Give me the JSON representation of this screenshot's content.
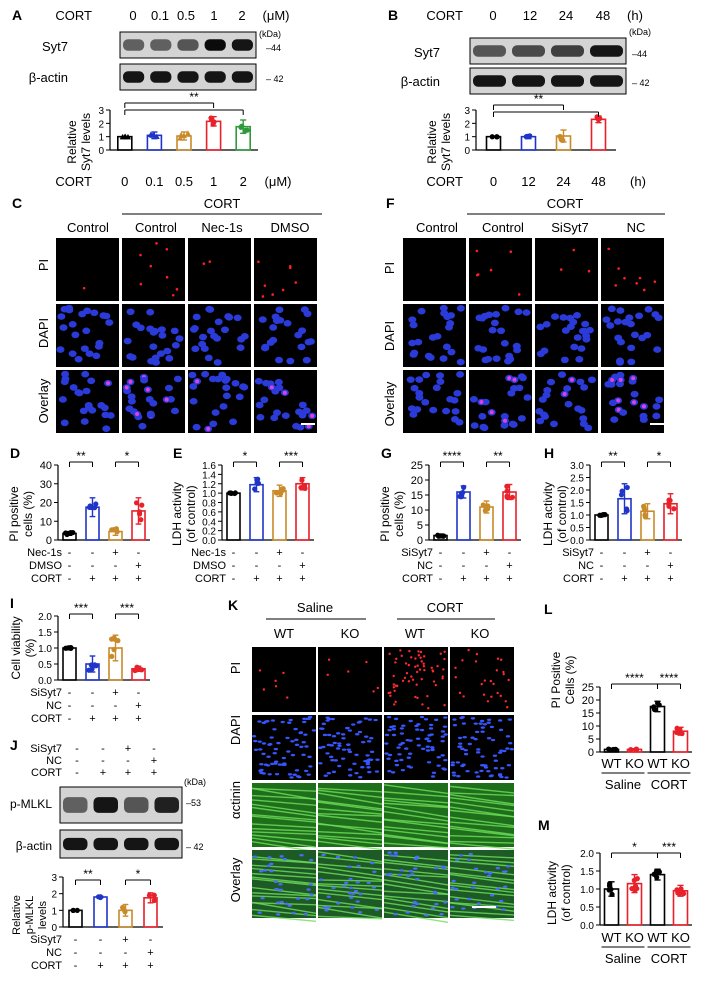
{
  "panels": {
    "A": {
      "letter": "A",
      "label": "CORT",
      "doses": [
        "0",
        "0.1",
        "0.5",
        "1",
        "2"
      ],
      "unit": "(μM)",
      "kda": "(kDa)",
      "blots": [
        {
          "name": "Syt7",
          "mw": "44"
        },
        {
          "name": "β-actin",
          "mw": "42"
        }
      ],
      "ylabel": [
        "Relative",
        "Syt7 levels"
      ],
      "sig": "**"
    },
    "B": {
      "letter": "B",
      "label": "CORT",
      "times": [
        "0",
        "12",
        "24",
        "48"
      ],
      "unit": "(h)",
      "kda": "(kDa)",
      "blots": [
        {
          "name": "Syt7",
          "mw": "44"
        },
        {
          "name": "β-actin",
          "mw": "42"
        }
      ],
      "ylabel": [
        "Relative",
        "Syt7 levels"
      ],
      "sig": "**"
    },
    "C": {
      "letter": "C",
      "top": "CORT",
      "cols": [
        "Control",
        "Control",
        "Nec-1s",
        "DMSO"
      ],
      "rows": [
        "PI",
        "DAPI",
        "Overlay"
      ]
    },
    "F": {
      "letter": "F",
      "top": "CORT",
      "cols": [
        "Control",
        "Control",
        "SiSyt7",
        "NC"
      ],
      "rows": [
        "PI",
        "DAPI",
        "Overlay"
      ]
    },
    "D": {
      "letter": "D",
      "ylabel": [
        "PI positive",
        "cells (%)"
      ],
      "sig": [
        "**",
        "*"
      ],
      "rows": [
        {
          "name": "Nec-1s",
          "signs": [
            "-",
            "-",
            "+",
            "-"
          ]
        },
        {
          "name": "DMSO",
          "signs": [
            "-",
            "-",
            "-",
            "+"
          ]
        },
        {
          "name": "CORT",
          "signs": [
            "-",
            "+",
            "+",
            "+"
          ]
        }
      ]
    },
    "E": {
      "letter": "E",
      "ylabel": [
        "LDH activity",
        "(of control)"
      ],
      "sig": [
        "*",
        "***"
      ],
      "rows": [
        {
          "name": "Nec-1s",
          "signs": [
            "-",
            "-",
            "+",
            "-"
          ]
        },
        {
          "name": "DMSO",
          "signs": [
            "-",
            "-",
            "-",
            "+"
          ]
        },
        {
          "name": "CORT",
          "signs": [
            "-",
            "+",
            "+",
            "+"
          ]
        }
      ]
    },
    "G": {
      "letter": "G",
      "ylabel": [
        "PI positive",
        "cells (%)"
      ],
      "sig": [
        "****",
        "**"
      ],
      "rows": [
        {
          "name": "SiSyt7",
          "signs": [
            "-",
            "-",
            "+",
            "-"
          ]
        },
        {
          "name": "NC",
          "signs": [
            "-",
            "-",
            "-",
            "+"
          ]
        },
        {
          "name": "CORT",
          "signs": [
            "-",
            "+",
            "+",
            "+"
          ]
        }
      ]
    },
    "H": {
      "letter": "H",
      "ylabel": [
        "LDH activity",
        "(of control)"
      ],
      "sig": [
        "**",
        "*"
      ],
      "rows": [
        {
          "name": "SiSyt7",
          "signs": [
            "-",
            "-",
            "+",
            "-"
          ]
        },
        {
          "name": "NC",
          "signs": [
            "-",
            "-",
            "-",
            "+"
          ]
        },
        {
          "name": "CORT",
          "signs": [
            "-",
            "+",
            "+",
            "+"
          ]
        }
      ]
    },
    "I": {
      "letter": "I",
      "ylabel": [
        "Cell viability",
        "(%)"
      ],
      "sig": [
        "***",
        "***"
      ],
      "rows": [
        {
          "name": "SiSyt7",
          "signs": [
            "-",
            "-",
            "+",
            "-"
          ]
        },
        {
          "name": "NC",
          "signs": [
            "-",
            "-",
            "-",
            "+"
          ]
        },
        {
          "name": "CORT",
          "signs": [
            "-",
            "+",
            "+",
            "+"
          ]
        }
      ]
    },
    "J": {
      "letter": "J",
      "kda": "(kDa)",
      "blots": [
        {
          "name": "p-MLKL",
          "mw": "53"
        },
        {
          "name": "β-actin",
          "mw": "42"
        }
      ],
      "rows": [
        {
          "name": "SiSyt7",
          "signs": [
            "-",
            "-",
            "+",
            "-"
          ]
        },
        {
          "name": "NC",
          "signs": [
            "-",
            "-",
            "-",
            "+"
          ]
        },
        {
          "name": "CORT",
          "signs": [
            "-",
            "+",
            "+",
            "+"
          ]
        }
      ],
      "ylabel": [
        "Relative",
        "p-MLKL",
        "levels"
      ],
      "sig": [
        "**",
        "*"
      ]
    },
    "K": {
      "letter": "K",
      "groups": [
        "Saline",
        "CORT"
      ],
      "cols": [
        "WT",
        "KO",
        "WT",
        "KO"
      ],
      "rows": [
        "PI",
        "DAPI",
        "αctinin",
        "Overlay"
      ]
    },
    "L": {
      "letter": "L",
      "ylabel": [
        "PI Positive",
        "Cells (%)"
      ],
      "sig": [
        "****",
        "****"
      ],
      "xcats": [
        "WT",
        "KO",
        "WT",
        "KO"
      ],
      "groups": [
        "Saline",
        "CORT"
      ]
    },
    "M": {
      "letter": "M",
      "ylabel": [
        "LDH activity",
        "(of control)"
      ],
      "sig": [
        "*",
        "***"
      ],
      "xcats": [
        "WT",
        "KO",
        "WT",
        "KO"
      ],
      "groups": [
        "Saline",
        "CORT"
      ]
    }
  },
  "chart_data": [
    {
      "id": "A",
      "type": "bar",
      "categories": [
        "0",
        "0.1",
        "0.5",
        "1",
        "2"
      ],
      "values": [
        1.0,
        1.1,
        1.05,
        2.15,
        1.75
      ],
      "errors": [
        0.02,
        0.25,
        0.3,
        0.35,
        0.5
      ],
      "ylim": [
        0,
        3
      ],
      "yticks": [
        0,
        1,
        2,
        3
      ],
      "colors": [
        "#000000",
        "#1f35c8",
        "#c98a2a",
        "#e8212a",
        "#2e9a3a"
      ]
    },
    {
      "id": "B",
      "type": "bar",
      "categories": [
        "0",
        "12",
        "24",
        "48"
      ],
      "values": [
        1.0,
        1.0,
        1.05,
        2.3
      ],
      "errors": [
        0.02,
        0.15,
        0.45,
        0.25
      ],
      "ylim": [
        0,
        3
      ],
      "yticks": [
        0,
        1,
        2,
        3
      ],
      "colors": [
        "#000000",
        "#1f35c8",
        "#c98a2a",
        "#e8212a"
      ]
    },
    {
      "id": "D",
      "type": "bar",
      "values": [
        3.5,
        17.5,
        4.5,
        15.5
      ],
      "errors": [
        1,
        5,
        2,
        7
      ],
      "ylim": [
        0,
        40
      ],
      "yticks": [
        0,
        10,
        20,
        30,
        40
      ],
      "colors": [
        "#000000",
        "#1f35c8",
        "#c98a2a",
        "#e8212a"
      ]
    },
    {
      "id": "E",
      "type": "bar",
      "values": [
        1.0,
        1.18,
        1.05,
        1.2
      ],
      "errors": [
        0.01,
        0.15,
        0.12,
        0.13
      ],
      "ylim": [
        0.0,
        1.6
      ],
      "yticks": [
        0.0,
        0.2,
        0.4,
        0.6,
        0.8,
        1.0,
        1.2,
        1.4,
        1.6
      ],
      "colors": [
        "#000000",
        "#1f35c8",
        "#c98a2a",
        "#e8212a"
      ]
    },
    {
      "id": "G",
      "type": "bar",
      "values": [
        1.5,
        16,
        11,
        16
      ],
      "errors": [
        0.5,
        2,
        2,
        2.5
      ],
      "ylim": [
        0,
        25
      ],
      "yticks": [
        0,
        5,
        10,
        15,
        20,
        25
      ],
      "colors": [
        "#000000",
        "#1f35c8",
        "#c98a2a",
        "#e8212a"
      ]
    },
    {
      "id": "H",
      "type": "bar",
      "values": [
        1.0,
        1.65,
        1.15,
        1.45
      ],
      "errors": [
        0.02,
        0.6,
        0.3,
        0.4
      ],
      "ylim": [
        0.0,
        3.0
      ],
      "yticks": [
        0.0,
        0.5,
        1.0,
        1.5,
        2.0,
        2.5,
        3.0
      ],
      "colors": [
        "#000000",
        "#1f35c8",
        "#c98a2a",
        "#e8212a"
      ]
    },
    {
      "id": "I",
      "type": "bar",
      "values": [
        1.0,
        0.5,
        1.0,
        0.35
      ],
      "errors": [
        0.02,
        0.25,
        0.4,
        0.08
      ],
      "ylim": [
        0.0,
        2.0
      ],
      "yticks": [
        0.0,
        0.5,
        1.0,
        1.5,
        2.0
      ],
      "colors": [
        "#000000",
        "#1f35c8",
        "#c98a2a",
        "#e8212a"
      ]
    },
    {
      "id": "J",
      "type": "bar",
      "values": [
        1.0,
        1.8,
        1.0,
        1.75
      ],
      "errors": [
        0.02,
        0.05,
        0.35,
        0.3
      ],
      "ylim": [
        0,
        3
      ],
      "yticks": [
        0,
        1,
        2,
        3
      ],
      "colors": [
        "#000000",
        "#1f35c8",
        "#c98a2a",
        "#e8212a"
      ]
    },
    {
      "id": "L",
      "type": "bar",
      "values": [
        1.0,
        1.0,
        17.5,
        8.0
      ],
      "errors": [
        0.3,
        0.3,
        2.0,
        1.5
      ],
      "ylim": [
        0,
        25
      ],
      "yticks": [
        0,
        5,
        10,
        15,
        20,
        25
      ],
      "colors": [
        "#000000",
        "#e8212a",
        "#000000",
        "#e8212a"
      ]
    },
    {
      "id": "M",
      "type": "bar",
      "values": [
        1.0,
        1.15,
        1.4,
        0.95
      ],
      "errors": [
        0.2,
        0.25,
        0.15,
        0.15
      ],
      "ylim": [
        0.0,
        2.0
      ],
      "yticks": [
        0.0,
        0.5,
        1.0,
        1.5,
        2.0
      ],
      "colors": [
        "#000000",
        "#e8212a",
        "#000000",
        "#e8212a"
      ]
    }
  ]
}
